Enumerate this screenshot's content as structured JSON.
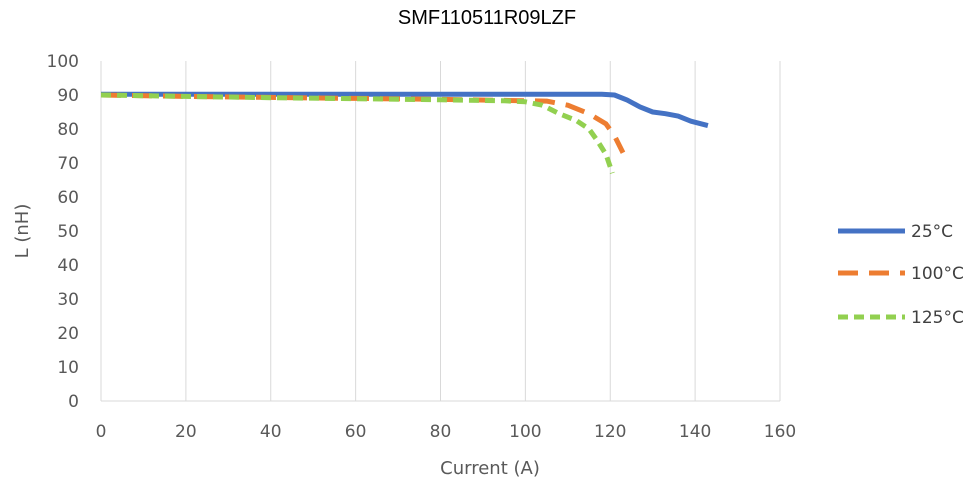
{
  "chart_data": {
    "type": "line",
    "title": "SMF110511R09LZF",
    "xlabel": "Current (A)",
    "ylabel": "L (nH)",
    "xlim": [
      0,
      160
    ],
    "ylim": [
      0,
      100
    ],
    "x_ticks": [
      0,
      20,
      40,
      60,
      80,
      100,
      120,
      140,
      160
    ],
    "y_ticks": [
      0,
      10,
      20,
      30,
      40,
      50,
      60,
      70,
      80,
      90,
      100
    ],
    "grid": "vertical",
    "legend_position": "right",
    "series": [
      {
        "name": "25°C",
        "color": "#4472c4",
        "dash": "solid",
        "points": [
          [
            0,
            90.2
          ],
          [
            20,
            90.2
          ],
          [
            40,
            90.2
          ],
          [
            60,
            90.2
          ],
          [
            80,
            90.2
          ],
          [
            100,
            90.2
          ],
          [
            110,
            90.2
          ],
          [
            118,
            90.2
          ],
          [
            121,
            90.0
          ],
          [
            124,
            88.5
          ],
          [
            127,
            86.5
          ],
          [
            130,
            85.0
          ],
          [
            133,
            84.5
          ],
          [
            136,
            83.8
          ],
          [
            139,
            82.3
          ],
          [
            143,
            81.0
          ]
        ]
      },
      {
        "name": "100°C",
        "color": "#ed7d31",
        "dash": "long",
        "points": [
          [
            0,
            90.0
          ],
          [
            20,
            89.6
          ],
          [
            40,
            89.3
          ],
          [
            60,
            89.0
          ],
          [
            80,
            88.7
          ],
          [
            95,
            88.4
          ],
          [
            100,
            88.3
          ],
          [
            105,
            88.2
          ],
          [
            110,
            87.0
          ],
          [
            115,
            84.5
          ],
          [
            119,
            81.5
          ],
          [
            121,
            78.0
          ],
          [
            123,
            73.0
          ]
        ]
      },
      {
        "name": "125°C",
        "color": "#92d050",
        "dash": "short",
        "points": [
          [
            0,
            90.0
          ],
          [
            20,
            89.6
          ],
          [
            40,
            89.2
          ],
          [
            60,
            88.9
          ],
          [
            80,
            88.6
          ],
          [
            95,
            88.3
          ],
          [
            100,
            88.0
          ],
          [
            104,
            87.0
          ],
          [
            108,
            84.5
          ],
          [
            112,
            82.5
          ],
          [
            115,
            80.0
          ],
          [
            117,
            76.5
          ],
          [
            119,
            72.5
          ],
          [
            120.5,
            67.0
          ]
        ]
      }
    ]
  }
}
